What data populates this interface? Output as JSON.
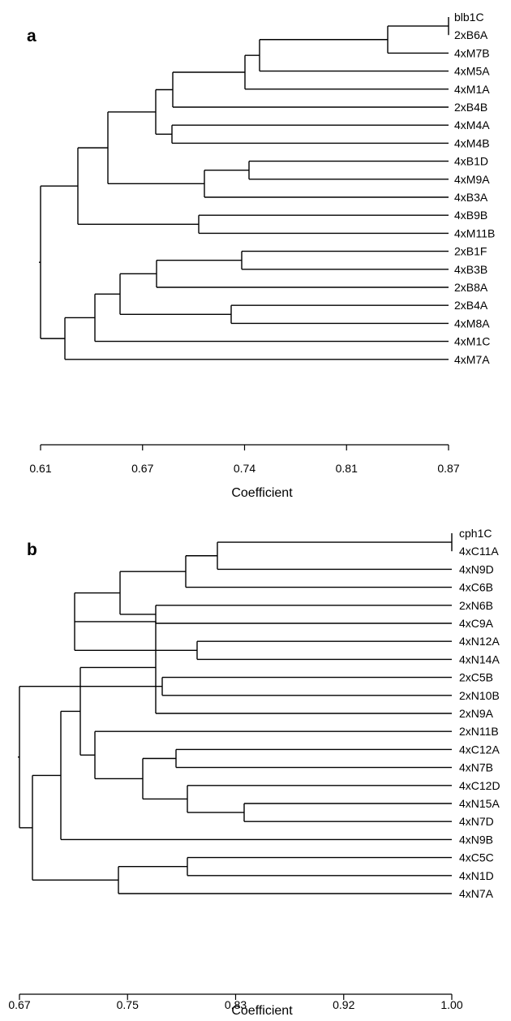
{
  "panels": [
    {
      "id": "a",
      "panel_label": "a",
      "axis_title": "Coefficient",
      "ticks": [
        "0.61",
        "0.67",
        "0.74",
        "0.81",
        "0.87"
      ],
      "leaves": [
        "blb1C",
        "2xB6A",
        "4xM7B",
        "4xM5A",
        "4xM1A",
        "2xB4B",
        "4xM4A",
        "4xM4B",
        "4xB1D",
        "4xM9A",
        "4xB3A",
        "4xB9B",
        "4xM11B",
        "2xB1F",
        "4xB3B",
        "2xB8A",
        "2xB4A",
        "4xM8A",
        "4xM1C",
        "4xM7A"
      ]
    },
    {
      "id": "b",
      "panel_label": "b",
      "axis_title": "Coefficient",
      "ticks": [
        "0.67",
        "0.75",
        "0.83",
        "0.92",
        "1.00"
      ],
      "leaves": [
        "cph1C",
        "4xC11A",
        "4xN9D",
        "4xC6B",
        "2xN6B",
        "4xC9A",
        "4xN12A",
        "4xN14A",
        "2xC5B",
        "2xN10B",
        "2xN9A",
        "2xN11B",
        "4xC12A",
        "4xN7B",
        "4xC12D",
        "4xN15A",
        "4xN7D",
        "4xN9B",
        "4xC5C",
        "4xN1D",
        "4xN7A"
      ]
    }
  ]
}
